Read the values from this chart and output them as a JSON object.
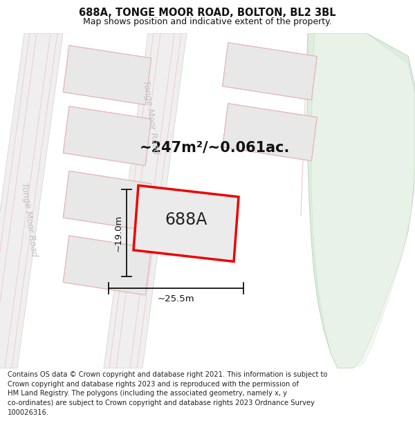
{
  "title_line1": "688A, TONGE MOOR ROAD, BOLTON, BL2 3BL",
  "title_line2": "Map shows position and indicative extent of the property.",
  "property_label": "688A",
  "area_label": "~247m²/~0.061ac.",
  "width_label": "~25.5m",
  "height_label": "~19.0m",
  "footer_text": "Contains OS data © Crown copyright and database right 2021. This information is subject to Crown copyright and database rights 2023 and is reproduced with the permission of HM Land Registry. The polygons (including the associated geometry, namely x, y co-ordinates) are subject to Crown copyright and database rights 2023 Ordnance Survey 100026316.",
  "bg_color": "#ffffff",
  "map_bg": "#f8f8f8",
  "road_fill": "#efefef",
  "road_edge": "#d0d0d0",
  "road_inner_line": "#f0c8c8",
  "road_label_color": "#c0c0c0",
  "block_fill": "#e8e8e8",
  "block_edge": "#c8c8c8",
  "block_red_edge": "#f0b0b0",
  "prop_fill": "#ebebeb",
  "prop_outline": "#ee0000",
  "green_fill": "#ddeedd",
  "green_edge": "#c0d8c0",
  "green_inner": "#e8f2e8",
  "dim_color": "#111111",
  "title_fontsize": 10.5,
  "subtitle_fontsize": 9.0,
  "area_fontsize": 15,
  "prop_label_fontsize": 17,
  "dim_fontsize": 9.5,
  "road_fontsize": 9.0,
  "footer_fontsize": 7.2
}
